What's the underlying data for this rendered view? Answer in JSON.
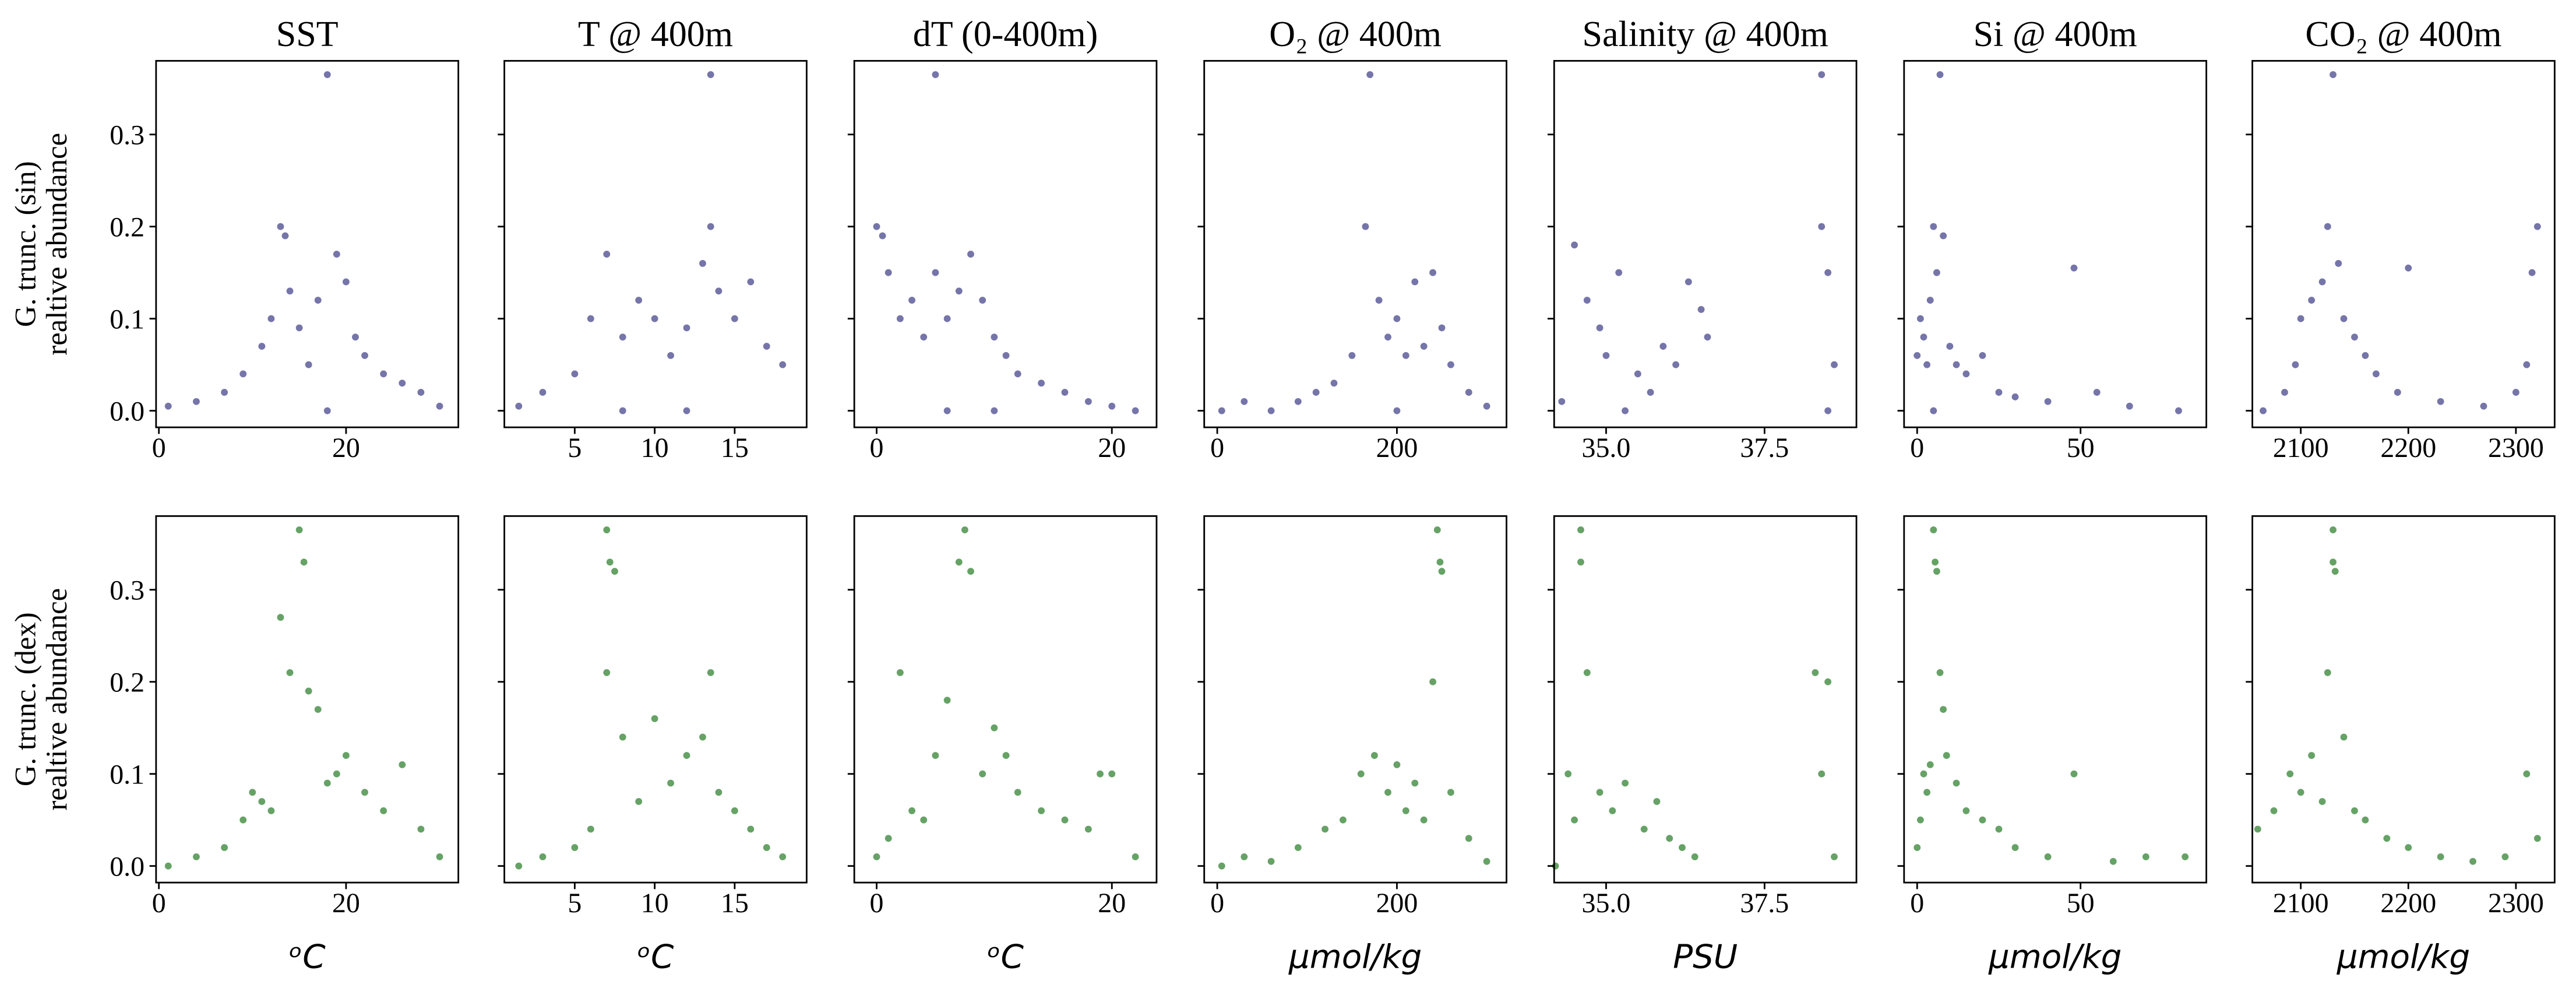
{
  "chart_data": [
    {
      "type": "scatter",
      "title": "SST",
      "ylabel": [
        "G. trunc. (sin)",
        "realtive abundance"
      ],
      "color": "#191970",
      "x": [
        1,
        4,
        7,
        9,
        11,
        12,
        13,
        13.5,
        14,
        15,
        16,
        17,
        18,
        19,
        20,
        21,
        22,
        24,
        26,
        28,
        30,
        18
      ],
      "values": [
        0.005,
        0.01,
        0.02,
        0.04,
        0.07,
        0.1,
        0.2,
        0.19,
        0.13,
        0.09,
        0.05,
        0.12,
        0.365,
        0.17,
        0.14,
        0.08,
        0.06,
        0.04,
        0.03,
        0.02,
        0.005,
        0.0
      ],
      "xlim": [
        -0.3,
        32
      ],
      "xticks": [
        0,
        20
      ],
      "ylim": [
        -0.018,
        0.38
      ],
      "yticks": [
        {
          "value": 0,
          "label": "0.0"
        },
        0.1,
        0.2,
        0.3
      ],
      "ytick_labels": true
    },
    {
      "type": "scatter",
      "title": "T @ 400m",
      "color": "#191970",
      "x": [
        1.5,
        3,
        5,
        6,
        7,
        8,
        9,
        10,
        11,
        12,
        13,
        13.5,
        13.5,
        14,
        15,
        16,
        17,
        18,
        8,
        12
      ],
      "values": [
        0.005,
        0.02,
        0.04,
        0.1,
        0.17,
        0.08,
        0.12,
        0.1,
        0.06,
        0.09,
        0.16,
        0.365,
        0.2,
        0.13,
        0.1,
        0.14,
        0.07,
        0.05,
        0.0,
        0.0
      ],
      "xlim": [
        0.6,
        19.5
      ],
      "xticks": [
        5,
        10,
        15
      ],
      "ylim": [
        -0.018,
        0.38
      ],
      "yticks": [
        0,
        0.1,
        0.2,
        0.3
      ],
      "ytick_labels": false
    },
    {
      "type": "scatter",
      "title": "dT (0-400m)",
      "color": "#191970",
      "x": [
        0,
        0.5,
        1,
        2,
        3,
        4,
        5,
        5,
        6,
        7,
        8,
        9,
        10,
        11,
        12,
        14,
        16,
        18,
        20,
        22,
        6,
        10
      ],
      "values": [
        0.2,
        0.19,
        0.15,
        0.1,
        0.12,
        0.08,
        0.365,
        0.15,
        0.1,
        0.13,
        0.17,
        0.12,
        0.08,
        0.06,
        0.04,
        0.03,
        0.02,
        0.01,
        0.005,
        0.0,
        0.0,
        0.0
      ],
      "xlim": [
        -1.9,
        23.8
      ],
      "xticks": [
        0,
        20
      ],
      "ylim": [
        -0.018,
        0.38
      ],
      "yticks": [
        0,
        0.1,
        0.2,
        0.3
      ],
      "ytick_labels": false
    },
    {
      "type": "scatter",
      "title": "O₂ @ 400m",
      "color": "#191970",
      "x": [
        5,
        30,
        60,
        90,
        110,
        130,
        150,
        165,
        170,
        180,
        190,
        200,
        210,
        220,
        230,
        240,
        250,
        260,
        280,
        300,
        200
      ],
      "values": [
        0.0,
        0.01,
        0.0,
        0.01,
        0.02,
        0.03,
        0.06,
        0.2,
        0.365,
        0.12,
        0.08,
        0.1,
        0.06,
        0.14,
        0.07,
        0.15,
        0.09,
        0.05,
        0.02,
        0.005,
        0.0
      ],
      "xlim": [
        -14.5,
        322
      ],
      "xticks": [
        0,
        200
      ],
      "ylim": [
        -0.018,
        0.38
      ],
      "yticks": [
        0,
        0.1,
        0.2,
        0.3
      ],
      "ytick_labels": false
    },
    {
      "type": "scatter",
      "title": "Salinity @ 400m",
      "color": "#191970",
      "x": [
        34.3,
        34.5,
        34.7,
        34.9,
        35.0,
        35.2,
        35.5,
        35.7,
        35.9,
        36.1,
        36.3,
        36.5,
        36.6,
        38.4,
        38.4,
        38.5,
        38.6,
        35.3,
        38.5
      ],
      "values": [
        0.01,
        0.18,
        0.12,
        0.09,
        0.06,
        0.15,
        0.04,
        0.02,
        0.07,
        0.05,
        0.14,
        0.11,
        0.08,
        0.365,
        0.2,
        0.15,
        0.05,
        0.0,
        0.0
      ],
      "xlim": [
        34.18,
        38.95
      ],
      "xticks": [
        {
          "value": 35,
          "label": "35.0"
        },
        37.5
      ],
      "ylim": [
        -0.018,
        0.38
      ],
      "yticks": [
        0,
        0.1,
        0.2,
        0.3
      ],
      "ytick_labels": false
    },
    {
      "type": "scatter",
      "title": "Si @ 400m",
      "color": "#191970",
      "x": [
        0,
        1,
        2,
        3,
        4,
        5,
        6,
        7,
        8,
        10,
        12,
        15,
        20,
        25,
        30,
        40,
        48,
        55,
        65,
        80,
        5
      ],
      "values": [
        0.06,
        0.1,
        0.08,
        0.05,
        0.12,
        0.2,
        0.15,
        0.365,
        0.19,
        0.07,
        0.05,
        0.04,
        0.06,
        0.02,
        0.015,
        0.01,
        0.155,
        0.02,
        0.005,
        0.0,
        0.0
      ],
      "xlim": [
        -4,
        88.5
      ],
      "xticks": [
        0,
        50
      ],
      "ylim": [
        -0.018,
        0.38
      ],
      "yticks": [
        0,
        0.1,
        0.2,
        0.3
      ],
      "ytick_labels": false
    },
    {
      "type": "scatter",
      "title": "CO₂ @ 400m",
      "color": "#191970",
      "x": [
        2065,
        2085,
        2095,
        2100,
        2110,
        2120,
        2125,
        2130,
        2135,
        2140,
        2150,
        2160,
        2170,
        2190,
        2200,
        2230,
        2270,
        2300,
        2310,
        2320,
        2315
      ],
      "values": [
        0.0,
        0.02,
        0.05,
        0.1,
        0.12,
        0.14,
        0.2,
        0.365,
        0.16,
        0.1,
        0.08,
        0.06,
        0.04,
        0.02,
        0.155,
        0.01,
        0.005,
        0.02,
        0.05,
        0.2,
        0.15
      ],
      "xlim": [
        2055,
        2336
      ],
      "xticks": [
        2100,
        2200,
        2300
      ],
      "ylim": [
        -0.018,
        0.38
      ],
      "yticks": [
        0,
        0.1,
        0.2,
        0.3
      ],
      "ytick_labels": false
    },
    {
      "type": "scatter",
      "ylabel": [
        "G. trunc. (dex)",
        "realtive abundance"
      ],
      "xlabel": "ᵒC",
      "color": "#006400",
      "x": [
        1,
        4,
        7,
        9,
        10,
        11,
        12,
        13,
        14,
        15,
        15.5,
        16,
        17,
        18,
        19,
        20,
        22,
        24,
        26,
        28,
        30
      ],
      "values": [
        0.0,
        0.01,
        0.02,
        0.05,
        0.08,
        0.07,
        0.06,
        0.27,
        0.21,
        0.365,
        0.33,
        0.19,
        0.17,
        0.09,
        0.1,
        0.12,
        0.08,
        0.06,
        0.11,
        0.04,
        0.01
      ],
      "xlim": [
        -0.3,
        32
      ],
      "xticks": [
        0,
        20
      ],
      "ylim": [
        -0.018,
        0.38
      ],
      "yticks": [
        {
          "value": 0,
          "label": "0.0"
        },
        0.1,
        0.2,
        0.3
      ],
      "ytick_labels": true
    },
    {
      "type": "scatter",
      "xlabel": "ᵒC",
      "color": "#006400",
      "x": [
        1.5,
        3,
        5,
        6,
        7,
        7,
        7.2,
        7.5,
        8,
        9,
        10,
        11,
        12,
        13,
        13.5,
        14,
        15,
        16,
        17,
        18
      ],
      "values": [
        0.0,
        0.01,
        0.02,
        0.04,
        0.21,
        0.365,
        0.33,
        0.32,
        0.14,
        0.07,
        0.16,
        0.09,
        0.12,
        0.14,
        0.21,
        0.08,
        0.06,
        0.04,
        0.02,
        0.01
      ],
      "xlim": [
        0.6,
        19.5
      ],
      "xticks": [
        5,
        10,
        15
      ],
      "ylim": [
        -0.018,
        0.38
      ],
      "yticks": [
        0,
        0.1,
        0.2,
        0.3
      ],
      "ytick_labels": false
    },
    {
      "type": "scatter",
      "xlabel": "ᵒC",
      "color": "#006400",
      "x": [
        0,
        1,
        2,
        3,
        4,
        5,
        6,
        7,
        7.5,
        8,
        9,
        10,
        11,
        12,
        14,
        16,
        18,
        19,
        20,
        22
      ],
      "values": [
        0.01,
        0.03,
        0.21,
        0.06,
        0.05,
        0.12,
        0.18,
        0.33,
        0.365,
        0.32,
        0.1,
        0.15,
        0.12,
        0.08,
        0.06,
        0.05,
        0.04,
        0.1,
        0.1,
        0.01
      ],
      "xlim": [
        -1.9,
        23.8
      ],
      "xticks": [
        0,
        20
      ],
      "ylim": [
        -0.018,
        0.38
      ],
      "yticks": [
        0,
        0.1,
        0.2,
        0.3
      ],
      "ytick_labels": false
    },
    {
      "type": "scatter",
      "xlabel": "μmol/kg",
      "color": "#006400",
      "x": [
        5,
        30,
        60,
        90,
        120,
        140,
        160,
        175,
        190,
        200,
        210,
        220,
        230,
        240,
        245,
        248,
        250,
        260,
        280,
        300
      ],
      "values": [
        0.0,
        0.01,
        0.005,
        0.02,
        0.04,
        0.05,
        0.1,
        0.12,
        0.08,
        0.11,
        0.06,
        0.09,
        0.05,
        0.2,
        0.365,
        0.33,
        0.32,
        0.08,
        0.03,
        0.005
      ],
      "xlim": [
        -14.5,
        322
      ],
      "xticks": [
        0,
        200
      ],
      "ylim": [
        -0.018,
        0.38
      ],
      "yticks": [
        0,
        0.1,
        0.2,
        0.3
      ],
      "ytick_labels": false
    },
    {
      "type": "scatter",
      "xlabel": "PSU",
      "color": "#006400",
      "x": [
        34.2,
        34.4,
        34.5,
        34.6,
        34.6,
        34.7,
        34.9,
        35.1,
        35.3,
        35.6,
        35.8,
        36.0,
        36.2,
        36.4,
        38.3,
        38.4,
        38.5,
        38.6
      ],
      "values": [
        0.0,
        0.1,
        0.05,
        0.365,
        0.33,
        0.21,
        0.08,
        0.06,
        0.09,
        0.04,
        0.07,
        0.03,
        0.02,
        0.01,
        0.21,
        0.1,
        0.2,
        0.01
      ],
      "xlim": [
        34.18,
        38.95
      ],
      "xticks": [
        {
          "value": 35,
          "label": "35.0"
        },
        37.5
      ],
      "ylim": [
        -0.018,
        0.38
      ],
      "yticks": [
        0,
        0.1,
        0.2,
        0.3
      ],
      "ytick_labels": false
    },
    {
      "type": "scatter",
      "xlabel": "μmol/kg",
      "color": "#006400",
      "x": [
        0,
        1,
        2,
        3,
        4,
        5,
        5.5,
        6,
        7,
        8,
        9,
        12,
        15,
        20,
        25,
        30,
        40,
        48,
        60,
        70,
        82
      ],
      "values": [
        0.02,
        0.05,
        0.1,
        0.08,
        0.11,
        0.365,
        0.33,
        0.32,
        0.21,
        0.17,
        0.12,
        0.09,
        0.06,
        0.05,
        0.04,
        0.02,
        0.01,
        0.1,
        0.005,
        0.01,
        0.01
      ],
      "xlim": [
        -4,
        88.5
      ],
      "xticks": [
        0,
        50
      ],
      "ylim": [
        -0.018,
        0.38
      ],
      "yticks": [
        0,
        0.1,
        0.2,
        0.3
      ],
      "ytick_labels": false
    },
    {
      "type": "scatter",
      "xlabel": "μmol/kg",
      "color": "#006400",
      "x": [
        2060,
        2075,
        2090,
        2100,
        2110,
        2120,
        2125,
        2130,
        2130,
        2132,
        2140,
        2150,
        2160,
        2180,
        2200,
        2230,
        2260,
        2290,
        2310,
        2320
      ],
      "values": [
        0.04,
        0.06,
        0.1,
        0.08,
        0.12,
        0.07,
        0.21,
        0.365,
        0.33,
        0.32,
        0.14,
        0.06,
        0.05,
        0.03,
        0.02,
        0.01,
        0.005,
        0.01,
        0.1,
        0.03
      ],
      "xlim": [
        2055,
        2336
      ],
      "xticks": [
        2100,
        2200,
        2300
      ],
      "ylim": [
        -0.018,
        0.38
      ],
      "yticks": [
        0,
        0.1,
        0.2,
        0.3
      ],
      "ytick_labels": false
    }
  ]
}
